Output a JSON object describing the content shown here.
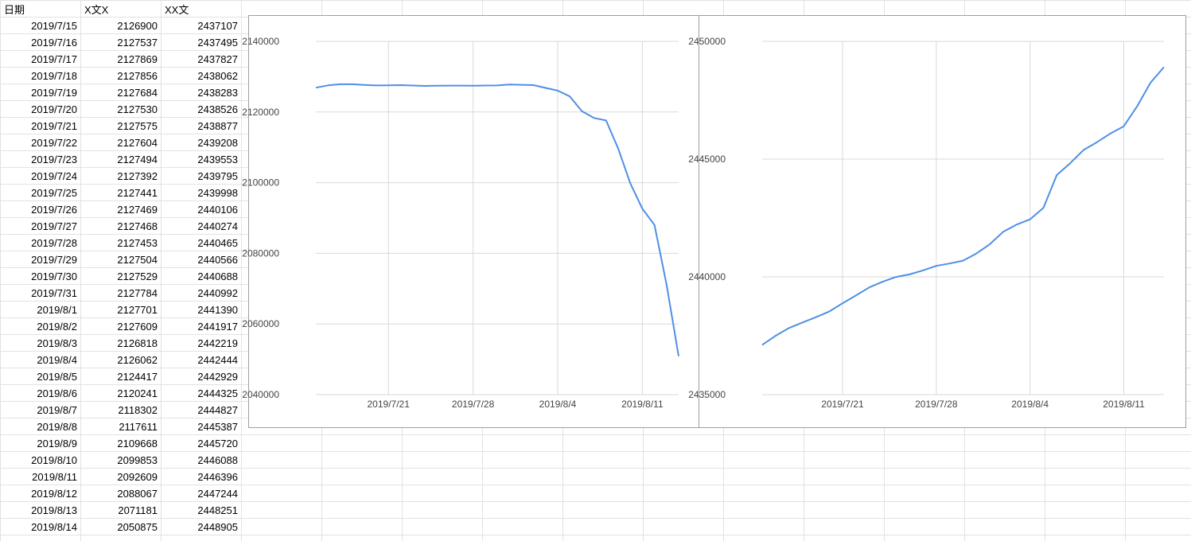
{
  "sheet": {
    "headers": [
      "日期",
      "X文X",
      "XX文"
    ],
    "rows": [
      [
        "2019/7/15",
        "2126900",
        "2437107"
      ],
      [
        "2019/7/16",
        "2127537",
        "2437495"
      ],
      [
        "2019/7/17",
        "2127869",
        "2437827"
      ],
      [
        "2019/7/18",
        "2127856",
        "2438062"
      ],
      [
        "2019/7/19",
        "2127684",
        "2438283"
      ],
      [
        "2019/7/20",
        "2127530",
        "2438526"
      ],
      [
        "2019/7/21",
        "2127575",
        "2438877"
      ],
      [
        "2019/7/22",
        "2127604",
        "2439208"
      ],
      [
        "2019/7/23",
        "2127494",
        "2439553"
      ],
      [
        "2019/7/24",
        "2127392",
        "2439795"
      ],
      [
        "2019/7/25",
        "2127441",
        "2439998"
      ],
      [
        "2019/7/26",
        "2127469",
        "2440106"
      ],
      [
        "2019/7/27",
        "2127468",
        "2440274"
      ],
      [
        "2019/7/28",
        "2127453",
        "2440465"
      ],
      [
        "2019/7/29",
        "2127504",
        "2440566"
      ],
      [
        "2019/7/30",
        "2127529",
        "2440688"
      ],
      [
        "2019/7/31",
        "2127784",
        "2440992"
      ],
      [
        "2019/8/1",
        "2127701",
        "2441390"
      ],
      [
        "2019/8/2",
        "2127609",
        "2441917"
      ],
      [
        "2019/8/3",
        "2126818",
        "2442219"
      ],
      [
        "2019/8/4",
        "2126062",
        "2442444"
      ],
      [
        "2019/8/5",
        "2124417",
        "2442929"
      ],
      [
        "2019/8/6",
        "2120241",
        "2444325"
      ],
      [
        "2019/8/7",
        "2118302",
        "2444827"
      ],
      [
        "2019/8/8",
        "2117611",
        "2445387"
      ],
      [
        "2019/8/9",
        "2109668",
        "2445720"
      ],
      [
        "2019/8/10",
        "2099853",
        "2446088"
      ],
      [
        "2019/8/11",
        "2092609",
        "2446396"
      ],
      [
        "2019/8/12",
        "2088067",
        "2447244"
      ],
      [
        "2019/8/13",
        "2071181",
        "2448251"
      ],
      [
        "2019/8/14",
        "2050875",
        "2448905"
      ]
    ]
  },
  "colors": {
    "line": "#4f8fe6",
    "grid": "#d9d9d9",
    "chart_border": "#9e9e9e",
    "cell_border": "#e2e2e2"
  },
  "chart_data": [
    {
      "type": "line",
      "series_column": "X文X",
      "x": [
        "2019/7/15",
        "2019/7/16",
        "2019/7/17",
        "2019/7/18",
        "2019/7/19",
        "2019/7/20",
        "2019/7/21",
        "2019/7/22",
        "2019/7/23",
        "2019/7/24",
        "2019/7/25",
        "2019/7/26",
        "2019/7/27",
        "2019/7/28",
        "2019/7/29",
        "2019/7/30",
        "2019/7/31",
        "2019/8/1",
        "2019/8/2",
        "2019/8/3",
        "2019/8/4",
        "2019/8/5",
        "2019/8/6",
        "2019/8/7",
        "2019/8/8",
        "2019/8/9",
        "2019/8/10",
        "2019/8/11",
        "2019/8/12",
        "2019/8/13",
        "2019/8/14"
      ],
      "values": [
        2126900,
        2127537,
        2127869,
        2127856,
        2127684,
        2127530,
        2127575,
        2127604,
        2127494,
        2127392,
        2127441,
        2127469,
        2127468,
        2127453,
        2127504,
        2127529,
        2127784,
        2127701,
        2127609,
        2126818,
        2126062,
        2124417,
        2120241,
        2118302,
        2117611,
        2109668,
        2099853,
        2092609,
        2088067,
        2071181,
        2050875
      ],
      "ylim": [
        2040000,
        2140000
      ],
      "yticks": [
        "2040000",
        "2060000",
        "2080000",
        "2100000",
        "2120000",
        "2140000"
      ],
      "xticks": [
        "2019/7/21",
        "2019/7/28",
        "2019/8/4",
        "2019/8/11"
      ],
      "grid": true,
      "title": "",
      "xlabel": "",
      "ylabel": ""
    },
    {
      "type": "line",
      "series_column": "XX文",
      "x": [
        "2019/7/15",
        "2019/7/16",
        "2019/7/17",
        "2019/7/18",
        "2019/7/19",
        "2019/7/20",
        "2019/7/21",
        "2019/7/22",
        "2019/7/23",
        "2019/7/24",
        "2019/7/25",
        "2019/7/26",
        "2019/7/27",
        "2019/7/28",
        "2019/7/29",
        "2019/7/30",
        "2019/7/31",
        "2019/8/1",
        "2019/8/2",
        "2019/8/3",
        "2019/8/4",
        "2019/8/5",
        "2019/8/6",
        "2019/8/7",
        "2019/8/8",
        "2019/8/9",
        "2019/8/10",
        "2019/8/11",
        "2019/8/12",
        "2019/8/13",
        "2019/8/14"
      ],
      "values": [
        2437107,
        2437495,
        2437827,
        2438062,
        2438283,
        2438526,
        2438877,
        2439208,
        2439553,
        2439795,
        2439998,
        2440106,
        2440274,
        2440465,
        2440566,
        2440688,
        2440992,
        2441390,
        2441917,
        2442219,
        2442444,
        2442929,
        2444325,
        2444827,
        2445387,
        2445720,
        2446088,
        2446396,
        2447244,
        2448251,
        2448905
      ],
      "ylim": [
        2435000,
        2450000
      ],
      "yticks": [
        "2435000",
        "2440000",
        "2445000",
        "2450000"
      ],
      "xticks": [
        "2019/7/21",
        "2019/7/28",
        "2019/8/4",
        "2019/8/11"
      ],
      "grid": true,
      "title": "",
      "xlabel": "",
      "ylabel": ""
    }
  ]
}
